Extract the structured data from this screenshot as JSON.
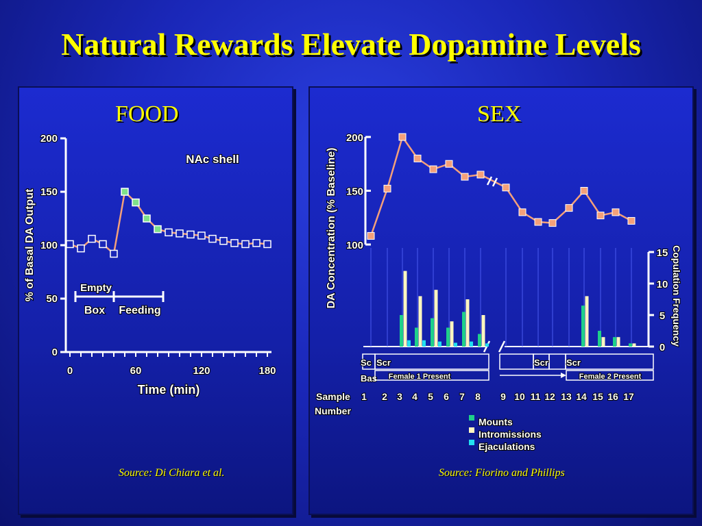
{
  "slide": {
    "title": "Natural Rewards Elevate Dopamine Levels"
  },
  "food": {
    "heading": "FOOD",
    "source": "Source: Di Chiara et al."
  },
  "sex": {
    "heading": "SEX",
    "source": "Source: Fiorino and Phillips"
  },
  "chart_data": [
    {
      "type": "line",
      "title": "",
      "annotation": "NAc shell",
      "xlabel": "Time (min)",
      "ylabel": "% of Basal DA Output",
      "xlim": [
        0,
        180
      ],
      "ylim": [
        0,
        200
      ],
      "xticks": [
        "0",
        "60",
        "120",
        "180"
      ],
      "yticks": [
        "0",
        "50",
        "100",
        "150",
        "200"
      ],
      "series": [
        {
          "x": [
            0,
            10,
            20,
            30,
            40,
            50,
            60,
            70,
            80,
            90,
            100,
            110,
            120,
            130,
            140,
            150,
            160,
            170,
            180
          ],
          "y": [
            101,
            97,
            106,
            101,
            92,
            150,
            140,
            125,
            115,
            112,
            111,
            110,
            109,
            106,
            104,
            102,
            101,
            102,
            101
          ],
          "marker_color": [
            "#1a27b8",
            "#1a27b8",
            "#1a27b8",
            "#1a27b8",
            "#1a27b8",
            "#7fe08a",
            "#7fe08a",
            "#7fe08a",
            "#7fe08a",
            "#1a27b8",
            "#1a27b8",
            "#1a27b8",
            "#1a27b8",
            "#1a27b8",
            "#1a27b8",
            "#1a27b8",
            "#1a27b8",
            "#1a27b8",
            "#1a27b8"
          ]
        }
      ],
      "phases": [
        {
          "label_top": "Empty",
          "label_bottom": "Box",
          "x_range": [
            5,
            40
          ]
        },
        {
          "label_top": "",
          "label_bottom": "Feeding",
          "x_range": [
            40,
            85
          ]
        }
      ],
      "line_color": "#f4a07a"
    },
    {
      "type": "line+bar",
      "title": "",
      "ylabel": "DA Concentration (% Baseline)",
      "ylabel_right": "Copulation Frequency",
      "xlabel": "Sample Number",
      "ylim": [
        100,
        200
      ],
      "yticks": [
        "100",
        "150",
        "200"
      ],
      "ylim_right": [
        0,
        15
      ],
      "yticks_right": [
        "0",
        "5",
        "10",
        "15"
      ],
      "samples": [
        "1",
        "2",
        "3",
        "4",
        "5",
        "6",
        "7",
        "8",
        "9",
        "10",
        "11",
        "12",
        "13",
        "14",
        "15",
        "16",
        "17"
      ],
      "da_line": [
        108,
        152,
        200,
        180,
        170,
        175,
        163,
        165,
        153,
        130,
        121,
        120,
        134,
        150,
        127,
        130,
        122
      ],
      "legend": [
        "Mounts",
        "Intromissions",
        "Ejaculations"
      ],
      "legend_colors": [
        "#1fd08a",
        "#fff6c0",
        "#22e0f0"
      ],
      "bars": {
        "Mounts": [
          0,
          0,
          5,
          3,
          4.5,
          3,
          5.5,
          2,
          0,
          0,
          0,
          0,
          0,
          6.5,
          2.5,
          1.5,
          0.5
        ],
        "Intromissions": [
          0,
          0,
          12,
          8,
          9,
          4,
          7.5,
          5,
          0,
          0,
          0,
          0,
          0,
          8,
          1.5,
          1.5,
          0.5
        ],
        "Ejaculations": [
          0,
          0,
          1,
          1,
          0.8,
          0.6,
          0.8,
          0.5,
          0,
          0,
          0,
          0,
          0,
          0,
          0,
          0,
          0
        ]
      },
      "segment_labels": [
        {
          "text": "Sc",
          "sub": "Bas"
        },
        {
          "text": "Scr",
          "sub": ""
        },
        {
          "text": "Female 1 Present",
          "sub": ""
        },
        {
          "text": "Scr",
          "sub": ""
        },
        {
          "text": "Scr",
          "sub": ""
        },
        {
          "text": "Female 2 Present",
          "sub": ""
        }
      ],
      "line_color": "#f4a07a",
      "marker_color": "#f4a07a"
    }
  ]
}
